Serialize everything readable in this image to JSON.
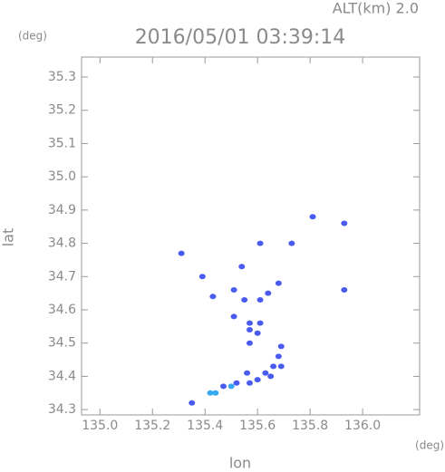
{
  "chart_data": {
    "type": "scatter",
    "title": "2016/05/01 03:39:14",
    "annotation": "ALT(km) 2.0",
    "y_unit": "(deg)",
    "x_unit": "(deg)",
    "x_label": "lon",
    "y_label": "lat",
    "xlim": [
      134.93,
      136.217
    ],
    "ylim": [
      34.284,
      35.36
    ],
    "xticks": [
      {
        "value": 135,
        "label": "135.0"
      },
      135.2,
      135.4,
      135.6,
      135.8,
      {
        "value": 136,
        "label": "136.0"
      }
    ],
    "yticks": [
      34.3,
      34.4,
      34.5,
      34.6,
      34.7,
      34.8,
      34.9,
      {
        "value": 35,
        "label": "35.0"
      },
      35.1,
      35.2,
      35.3
    ],
    "series": [
      {
        "color": "#4a5cf0",
        "x": [
          135.31,
          135.39,
          135.43,
          135.51,
          135.55,
          135.61,
          135.64,
          135.68,
          135.51,
          135.57,
          135.61,
          135.57,
          135.6,
          135.57,
          135.93,
          135.93,
          135.81,
          135.73,
          135.61,
          135.54,
          135.6,
          135.63,
          135.66,
          135.69,
          135.68,
          135.69,
          135.65,
          135.56,
          135.57,
          135.52,
          135.47,
          135.35
        ],
        "values": [
          34.77,
          34.7,
          34.64,
          34.66,
          34.63,
          34.63,
          34.65,
          34.68,
          34.58,
          34.56,
          34.56,
          34.54,
          34.53,
          34.5,
          34.66,
          34.86,
          34.88,
          34.8,
          34.8,
          34.73,
          34.39,
          34.41,
          34.43,
          34.43,
          34.46,
          34.49,
          34.4,
          34.41,
          34.38,
          34.38,
          34.37,
          34.32
        ]
      },
      {
        "color": "#38a8f0",
        "x": [
          135.5,
          135.44,
          135.42
        ],
        "values": [
          34.37,
          34.35,
          34.35
        ]
      }
    ]
  }
}
